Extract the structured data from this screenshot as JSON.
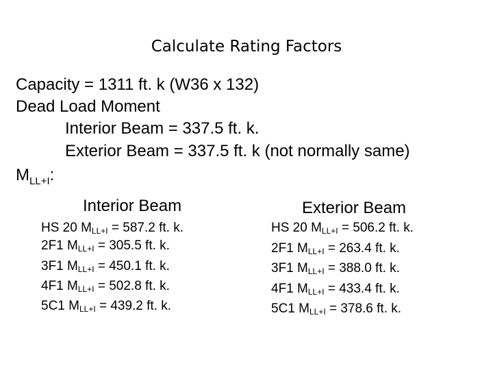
{
  "title": "Calculate Rating Factors",
  "capacity": "Capacity = 1311 ft. k (W36 x 132)",
  "dead_load": {
    "heading": "Dead Load Moment",
    "interior": "Interior Beam = 337.5 ft. k.",
    "exterior": "Exterior Beam = 337.5 ft. k (not normally same)"
  },
  "mll": {
    "symbol": "M",
    "subscript": "LL+I",
    "suffix": ":"
  },
  "interior": {
    "heading": "Interior Beam",
    "rows": [
      {
        "prefix": "HS 20 M",
        "sub": "LL+I",
        "value": " = 587.2 ft. k."
      },
      {
        "prefix": "2F1 M",
        "sub": "LL+I",
        "value": " = 305.5 ft. k."
      },
      {
        "prefix": "3F1 M",
        "sub": "LL+I",
        "value": " = 450.1 ft. k."
      },
      {
        "prefix": "4F1 M",
        "sub": "LL+I",
        "value": " = 502.8 ft. k."
      },
      {
        "prefix": "5C1 M",
        "sub": "LL+I",
        "value": " = 439.2 ft. k."
      }
    ]
  },
  "exterior": {
    "heading": "Exterior Beam",
    "rows": [
      {
        "prefix": "HS 20 M",
        "sub": "LL+I",
        "value": " = 506.2 ft. k."
      },
      {
        "prefix": "2F1 M",
        "sub": "LL+I",
        "value": " = 263.4 ft. k."
      },
      {
        "prefix": "3F1 M",
        "sub": "LL+I",
        "value": " = 388.0 ft. k."
      },
      {
        "prefix": "4F1 M",
        "sub": "LL+I",
        "value": " = 433.4 ft. k."
      },
      {
        "prefix": "5C1 M",
        "sub": "LL+I",
        "value": " = 378.6 ft. k."
      }
    ]
  }
}
